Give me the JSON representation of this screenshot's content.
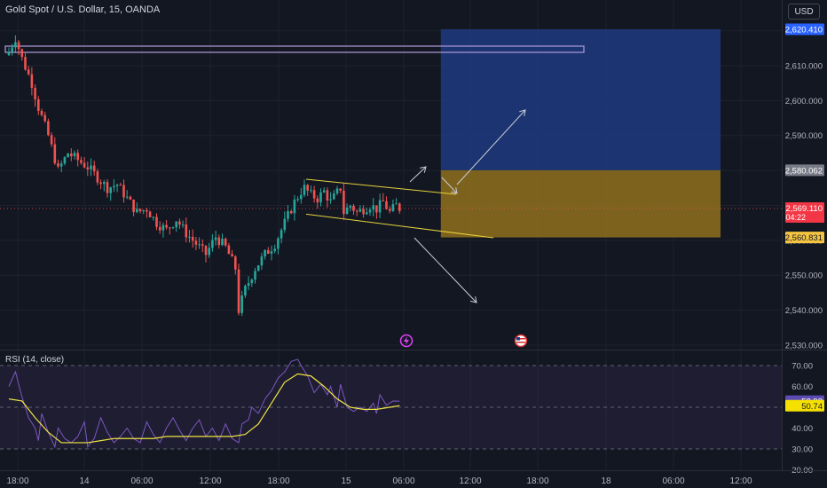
{
  "header": {
    "title": "Gold Spot / U.S. Dollar, 15, OANDA",
    "currency": "USD"
  },
  "rsi": {
    "title": "RSI (14, close)",
    "value": "52.93",
    "ma_value": "50.74"
  },
  "badges": {
    "target": "2,620.410",
    "entry": "2,580.062",
    "last": "2,569.110",
    "countdown": "04:22",
    "stop": "2,560.831"
  },
  "colors": {
    "background": "#131722",
    "up": "#26a69a",
    "down": "#ef5350",
    "rsi_line": "#7e57c2",
    "rsi_ma": "#f0e442",
    "profit_zone": "#1e3a80",
    "loss_zone": "#8a6a1e",
    "target_badge": "#2962ff",
    "entry_badge": "#787b86",
    "stop_badge": "#f5c542"
  },
  "icons": [
    "lightning-event-icon",
    "us-flag-event-icon"
  ],
  "chart_data": [
    {
      "type": "candlestick",
      "title": "Gold Spot / U.S. Dollar, 15, OANDA",
      "x_ticks": [
        "18:00",
        "14",
        "06:00",
        "12:00",
        "18:00",
        "15",
        "06:00",
        "12:00",
        "18:00",
        "18",
        "06:00",
        "12:00"
      ],
      "y_ticks": [
        "2,530.000",
        "2,540.000",
        "2,550.000",
        "2,560.000",
        "2,570.000",
        "2,580.000",
        "2,590.000",
        "2,600.000",
        "2,610.000",
        "2,620.000"
      ],
      "ylim": [
        2528,
        2626
      ],
      "bars_per_hour": 4,
      "first_bar_time": "13 18:00",
      "close_path": [
        [
          0,
          2614
        ],
        [
          2,
          2618
        ],
        [
          4,
          2612
        ],
        [
          7,
          2605
        ],
        [
          9,
          2598
        ],
        [
          12,
          2590
        ],
        [
          15,
          2580
        ],
        [
          18,
          2585
        ],
        [
          21,
          2583
        ],
        [
          24,
          2581
        ],
        [
          27,
          2578
        ],
        [
          30,
          2575
        ],
        [
          33,
          2576
        ],
        [
          36,
          2572
        ],
        [
          39,
          2568
        ],
        [
          42,
          2569
        ],
        [
          45,
          2565
        ],
        [
          48,
          2563
        ],
        [
          51,
          2566
        ],
        [
          54,
          2562
        ],
        [
          57,
          2559
        ],
        [
          60,
          2556
        ],
        [
          63,
          2561
        ],
        [
          66,
          2558
        ],
        [
          69,
          2552
        ],
        [
          70,
          2540
        ],
        [
          72,
          2546
        ],
        [
          75,
          2552
        ],
        [
          78,
          2556
        ],
        [
          81,
          2559
        ],
        [
          84,
          2565
        ],
        [
          87,
          2571
        ],
        [
          89,
          2574
        ],
        [
          90,
          2575
        ],
        [
          92,
          2573
        ],
        [
          94,
          2572
        ],
        [
          96,
          2574
        ],
        [
          98,
          2571
        ],
        [
          101,
          2575
        ],
        [
          102,
          2568
        ],
        [
          104,
          2570
        ],
        [
          106,
          2568
        ],
        [
          108,
          2569
        ],
        [
          110,
          2570
        ],
        [
          112,
          2569
        ],
        [
          114,
          2571
        ],
        [
          116,
          2568
        ],
        [
          118,
          2570
        ],
        [
          119,
          2569.11
        ]
      ],
      "channel": {
        "upper": [
          [
            90,
            2577.5
          ],
          [
            135,
            2573.5
          ]
        ],
        "lower": [
          [
            90,
            2567.5
          ],
          [
            135,
            2563.5
          ]
        ]
      },
      "horizontal_box": {
        "x": [
          0,
          180
        ],
        "y": [
          2615,
          2616.5
        ]
      },
      "position": {
        "x": [
          134,
          190
        ],
        "target": 2620.41,
        "entry": 2580.062,
        "stop": 2560.831
      },
      "arrows": [
        [
          [
            128,
            2582
          ],
          [
            132,
            2586
          ]
        ],
        [
          [
            133,
            2581.5
          ],
          [
            139,
            2573
          ]
        ],
        [
          [
            139,
            2575
          ],
          [
            163,
            2598
          ]
        ],
        [
          [
            128,
            2561
          ],
          [
            146,
            2538
          ]
        ]
      ],
      "event_icons": [
        {
          "name": "lightning-event-icon",
          "x": 125
        },
        {
          "name": "us-flag-event-icon",
          "x": 160
        }
      ]
    },
    {
      "type": "line",
      "title": "RSI (14, close)",
      "y_ticks": [
        "20.00",
        "30.00",
        "40.00",
        "50.00",
        "60.00",
        "70.00"
      ],
      "ylim": [
        18,
        78
      ],
      "band": [
        30,
        70
      ],
      "midline": 50,
      "series": [
        {
          "name": "RSI",
          "values": [
            [
              0,
              60
            ],
            [
              2,
              67
            ],
            [
              4,
              55
            ],
            [
              6,
              45
            ],
            [
              8,
              40
            ],
            [
              9,
              34
            ],
            [
              10,
              47
            ],
            [
              12,
              38
            ],
            [
              14,
              31
            ],
            [
              15,
              40
            ],
            [
              17,
              35
            ],
            [
              19,
              33
            ],
            [
              21,
              36
            ],
            [
              23,
              43
            ],
            [
              24,
              31
            ],
            [
              26,
              35
            ],
            [
              28,
              45
            ],
            [
              30,
              38
            ],
            [
              32,
              33
            ],
            [
              34,
              36
            ],
            [
              36,
              40
            ],
            [
              38,
              35
            ],
            [
              40,
              33
            ],
            [
              42,
              43
            ],
            [
              44,
              37
            ],
            [
              46,
              33
            ],
            [
              48,
              40
            ],
            [
              50,
              45
            ],
            [
              52,
              39
            ],
            [
              54,
              34
            ],
            [
              56,
              40
            ],
            [
              58,
              44
            ],
            [
              60,
              36
            ],
            [
              62,
              40
            ],
            [
              64,
              34
            ],
            [
              66,
              42
            ],
            [
              68,
              35
            ],
            [
              70,
              33
            ],
            [
              71,
              42
            ],
            [
              73,
              44
            ],
            [
              74,
              50
            ],
            [
              76,
              47
            ],
            [
              78,
              54
            ],
            [
              80,
              58
            ],
            [
              82,
              64
            ],
            [
              84,
              67
            ],
            [
              86,
              72
            ],
            [
              88,
              73
            ],
            [
              89,
              70
            ],
            [
              91,
              65
            ],
            [
              93,
              57
            ],
            [
              95,
              61
            ],
            [
              97,
              56
            ],
            [
              98,
              60
            ],
            [
              100,
              50
            ],
            [
              101,
              61
            ],
            [
              103,
              50
            ],
            [
              105,
              48
            ],
            [
              107,
              50
            ],
            [
              109,
              48
            ],
            [
              111,
              52
            ],
            [
              112,
              47
            ],
            [
              113,
              56
            ],
            [
              115,
              51
            ],
            [
              117,
              53
            ],
            [
              119,
              52.93
            ]
          ]
        },
        {
          "name": "RSI MA",
          "values": [
            [
              0,
              54
            ],
            [
              4,
              53
            ],
            [
              8,
              45
            ],
            [
              12,
              38
            ],
            [
              16,
              33
            ],
            [
              20,
              33
            ],
            [
              24,
              33
            ],
            [
              28,
              34
            ],
            [
              32,
              35
            ],
            [
              36,
              35
            ],
            [
              40,
              35
            ],
            [
              44,
              35
            ],
            [
              48,
              36
            ],
            [
              52,
              36
            ],
            [
              56,
              36
            ],
            [
              60,
              36
            ],
            [
              64,
              36
            ],
            [
              68,
              36
            ],
            [
              72,
              37
            ],
            [
              76,
              42
            ],
            [
              80,
              52
            ],
            [
              84,
              62
            ],
            [
              88,
              66
            ],
            [
              92,
              65
            ],
            [
              96,
              60
            ],
            [
              100,
              54
            ],
            [
              104,
              50
            ],
            [
              108,
              49
            ],
            [
              112,
              49
            ],
            [
              116,
              50
            ],
            [
              119,
              50.74
            ]
          ]
        }
      ]
    }
  ]
}
